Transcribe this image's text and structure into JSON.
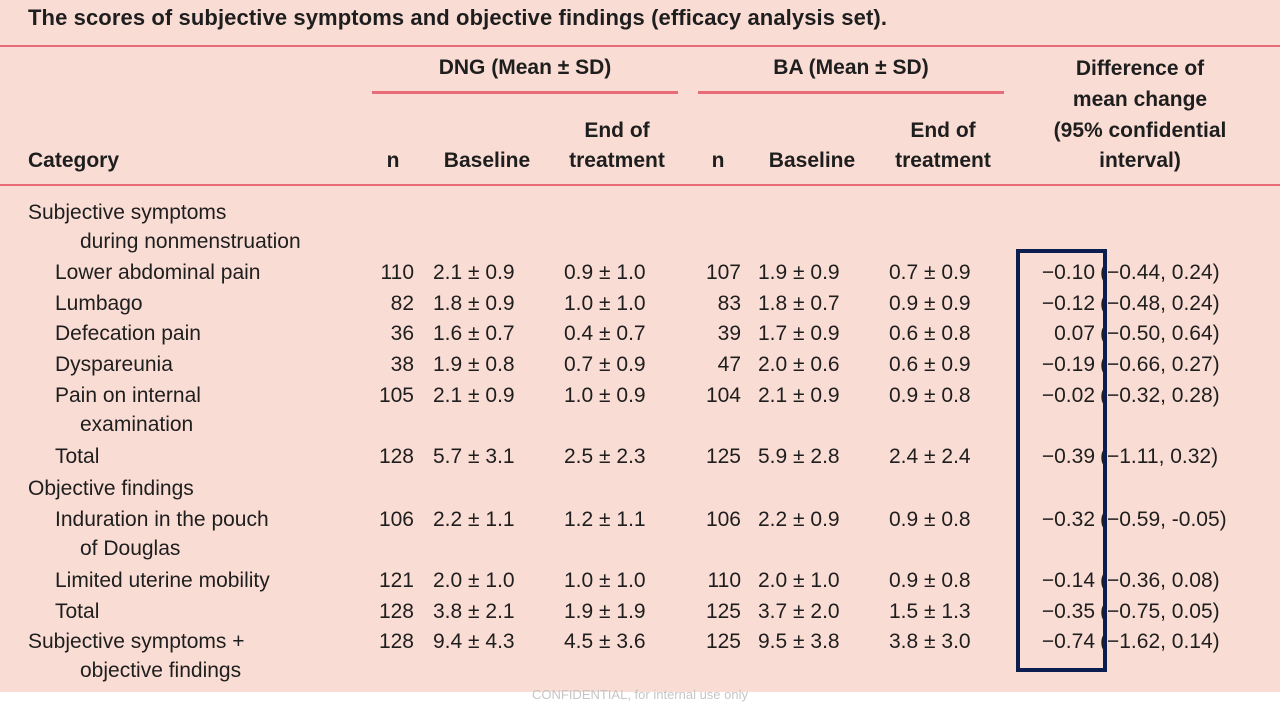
{
  "title": "The scores of subjective symptoms and objective findings (efficacy analysis set).",
  "groups": {
    "dng": "DNG (Mean ± SD)",
    "ba": "BA (Mean ± SD)"
  },
  "headers": {
    "category": "Category",
    "n": "n",
    "baseline": "Baseline",
    "end_1": "End of",
    "end_2": "treatment",
    "diff_1": "Difference of",
    "diff_2": "mean change",
    "diff_3": "(95% confidential",
    "diff_4": "interval)"
  },
  "sections": {
    "subjective_1": "Subjective symptoms",
    "subjective_2": "during nonmenstruation",
    "objective": "Objective findings"
  },
  "rows": [
    {
      "label": "Lower abdominal pain",
      "label2": "",
      "dng_n": "110",
      "dng_base": "2.1 ± 0.9",
      "dng_end": "0.9 ± 1.0",
      "ba_n": "107",
      "ba_base": "1.9 ± 0.9",
      "ba_end": "0.7 ± 0.9",
      "diff": "−0.10",
      "ci": "(−0.44, 0.24)"
    },
    {
      "label": "Lumbago",
      "label2": "",
      "dng_n": "82",
      "dng_base": "1.8 ± 0.9",
      "dng_end": "1.0 ± 1.0",
      "ba_n": "83",
      "ba_base": "1.8 ± 0.7",
      "ba_end": "0.9 ± 0.9",
      "diff": "−0.12",
      "ci": "(−0.48, 0.24)"
    },
    {
      "label": "Defecation pain",
      "label2": "",
      "dng_n": "36",
      "dng_base": "1.6 ± 0.7",
      "dng_end": "0.4 ± 0.7",
      "ba_n": "39",
      "ba_base": "1.7 ± 0.9",
      "ba_end": "0.6 ± 0.8",
      "diff": "0.07",
      "ci": "(−0.50, 0.64)"
    },
    {
      "label": "Dyspareunia",
      "label2": "",
      "dng_n": "38",
      "dng_base": "1.9 ± 0.8",
      "dng_end": "0.7 ± 0.9",
      "ba_n": "47",
      "ba_base": "2.0 ± 0.6",
      "ba_end": "0.6 ± 0.9",
      "diff": "−0.19",
      "ci": "(−0.66, 0.27)"
    },
    {
      "label": "Pain on internal",
      "label2": "examination",
      "dng_n": "105",
      "dng_base": "2.1 ± 0.9",
      "dng_end": "1.0 ± 0.9",
      "ba_n": "104",
      "ba_base": "2.1 ± 0.9",
      "ba_end": "0.9 ± 0.8",
      "diff": "−0.02",
      "ci": "(−0.32, 0.28)"
    },
    {
      "label": "Total",
      "label2": "",
      "dng_n": "128",
      "dng_base": "5.7 ± 3.1",
      "dng_end": "2.5 ± 2.3",
      "ba_n": "125",
      "ba_base": "5.9 ± 2.8",
      "ba_end": "2.4 ± 2.4",
      "diff": "−0.39",
      "ci": "(−1.11, 0.32)"
    },
    {
      "label": "Induration in the pouch",
      "label2": "of Douglas",
      "dng_n": "106",
      "dng_base": "2.2 ± 1.1",
      "dng_end": "1.2 ± 1.1",
      "ba_n": "106",
      "ba_base": "2.2 ± 0.9",
      "ba_end": "0.9 ± 0.8",
      "diff": "−0.32",
      "ci": "(−0.59, -0.05)"
    },
    {
      "label": "Limited uterine mobility",
      "label2": "",
      "dng_n": "121",
      "dng_base": "2.0 ± 1.0",
      "dng_end": "1.0 ± 1.0",
      "ba_n": "110",
      "ba_base": "2.0 ± 1.0",
      "ba_end": "0.9 ± 0.8",
      "diff": "−0.14",
      "ci": "(−0.36, 0.08)"
    },
    {
      "label": "Total",
      "label2": "",
      "dng_n": "128",
      "dng_base": "3.8 ± 2.1",
      "dng_end": "1.9 ± 1.9",
      "ba_n": "125",
      "ba_base": "3.7 ± 2.0",
      "ba_end": "1.5 ± 1.3",
      "diff": "−0.35",
      "ci": "(−0.75, 0.05)"
    },
    {
      "label": "Subjective symptoms +",
      "label2": "objective findings",
      "dng_n": "128",
      "dng_base": "9.4 ± 4.3",
      "dng_end": "4.5 ± 3.6",
      "ba_n": "125",
      "ba_base": "9.5 ± 3.8",
      "ba_end": "3.8 ± 3.0",
      "diff": "−0.74",
      "ci": "(−1.62, 0.14)"
    }
  ],
  "footer": "CONFIDENTIAL, for internal use only",
  "colors": {
    "background": "#f9dcd3",
    "rule": "#e86c78",
    "highlight_box": "#0c1e4f"
  }
}
